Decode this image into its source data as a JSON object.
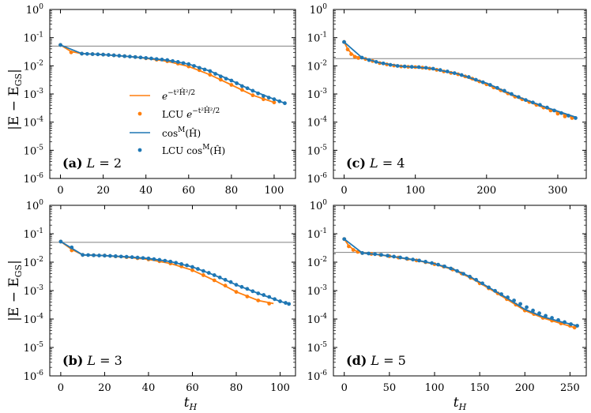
{
  "figure": {
    "ylabel": "|E − E",
    "ylabel_sub": "GS",
    "ylabel_close": "|",
    "xlabel": "t",
    "xlabel_sub": "H"
  },
  "colors": {
    "orange": "#ff7f0e",
    "blue": "#1f77b4",
    "reference": "#808080"
  },
  "legend": {
    "items": [
      {
        "key": "gauss_line",
        "label": "e^{−t²Ĥ²/2}"
      },
      {
        "key": "gauss_lcu",
        "label": "LCU e^{−t²Ĥ²/2}"
      },
      {
        "key": "cos_line",
        "label": "cos^M(Ĥ)"
      },
      {
        "key": "cos_lcu",
        "label": "LCU cos^M(Ĥ)"
      }
    ]
  },
  "y_ticks": {
    "base": "10",
    "exponents": [
      "0",
      "-1",
      "-2",
      "-3",
      "-4",
      "-5",
      "-6"
    ]
  },
  "chart_data": [
    {
      "type": "line",
      "label": "(a)",
      "title": "L = 2",
      "L": "2",
      "xlim": [
        -5,
        110
      ],
      "xticks": [
        0,
        20,
        40,
        60,
        80,
        100
      ],
      "ylim_log10": [
        -6,
        0
      ],
      "reference_y": 0.05,
      "series": [
        {
          "name": "gaussian",
          "style": "orange-line",
          "x": [
            0,
            5,
            10,
            20,
            30,
            40,
            50,
            60,
            70,
            80,
            90,
            100
          ],
          "y": [
            0.055,
            0.032,
            0.027,
            0.025,
            0.022,
            0.0185,
            0.0145,
            0.0095,
            0.0048,
            0.0021,
            0.0009,
            0.0005
          ]
        },
        {
          "name": "LCU gaussian",
          "style": "orange-dots",
          "x": [
            0,
            5,
            10,
            15,
            20,
            25,
            30,
            35,
            40,
            45,
            50,
            55,
            60,
            65,
            70,
            75,
            80,
            85,
            90,
            95,
            100
          ],
          "y": [
            0.055,
            0.03,
            0.027,
            0.026,
            0.025,
            0.0235,
            0.022,
            0.0205,
            0.0185,
            0.0165,
            0.0145,
            0.012,
            0.0095,
            0.007,
            0.0048,
            0.0032,
            0.0021,
            0.0014,
            0.0009,
            0.00065,
            0.0005
          ]
        },
        {
          "name": "cos^M",
          "style": "blue-line",
          "x": [
            0,
            10,
            20,
            30,
            40,
            50,
            60,
            70,
            80,
            90,
            100,
            105
          ],
          "y": [
            0.055,
            0.027,
            0.025,
            0.022,
            0.019,
            0.016,
            0.0115,
            0.0065,
            0.003,
            0.0013,
            0.00065,
            0.00047
          ]
        },
        {
          "name": "LCU cos^M",
          "style": "blue-dots",
          "x": [
            0,
            10,
            12.5,
            15,
            17.5,
            20,
            22.5,
            25,
            27.5,
            30,
            32.5,
            35,
            37.5,
            40,
            42.5,
            45,
            47.5,
            50,
            52.5,
            55,
            57.5,
            60,
            62.5,
            65,
            67.5,
            70,
            72.5,
            75,
            77.5,
            80,
            82.5,
            85,
            87.5,
            90,
            92.5,
            95,
            97.5,
            100,
            102.5,
            105
          ],
          "y": [
            0.055,
            0.027,
            0.0265,
            0.026,
            0.0255,
            0.025,
            0.0243,
            0.0236,
            0.0228,
            0.022,
            0.0213,
            0.0205,
            0.0198,
            0.019,
            0.0182,
            0.0174,
            0.0167,
            0.016,
            0.0148,
            0.0137,
            0.0125,
            0.0115,
            0.0099,
            0.0085,
            0.0074,
            0.0065,
            0.0052,
            0.0042,
            0.0035,
            0.003,
            0.0024,
            0.0019,
            0.0016,
            0.0013,
            0.00105,
            0.00085,
            0.00074,
            0.00065,
            0.00055,
            0.00047
          ]
        }
      ]
    },
    {
      "type": "line",
      "label": "(c)",
      "title": "L = 4",
      "L": "4",
      "xlim": [
        -15,
        340
      ],
      "xticks": [
        0,
        100,
        200,
        300
      ],
      "ylim_log10": [
        -6,
        0
      ],
      "reference_y": 0.018,
      "series": [
        {
          "name": "gaussian",
          "style": "orange-line",
          "x": [
            0,
            5,
            10,
            15,
            20,
            30,
            50,
            80,
            120,
            160,
            200,
            240,
            280,
            320
          ],
          "y": [
            0.07,
            0.04,
            0.028,
            0.022,
            0.02,
            0.0175,
            0.0125,
            0.0095,
            0.008,
            0.005,
            0.0022,
            0.0008,
            0.00033,
            0.00015
          ]
        },
        {
          "name": "LCU gaussian",
          "style": "orange-dots",
          "x": [
            0,
            5,
            10,
            15,
            20,
            30,
            40,
            50,
            60,
            70,
            80,
            90,
            100,
            110,
            120,
            130,
            140,
            150,
            160,
            170,
            180,
            190,
            200,
            210,
            220,
            230,
            240,
            250,
            260,
            270,
            280,
            290,
            300,
            310,
            320
          ],
          "y": [
            0.07,
            0.038,
            0.026,
            0.021,
            0.019,
            0.0175,
            0.0148,
            0.0125,
            0.0112,
            0.0102,
            0.0095,
            0.0092,
            0.009,
            0.0086,
            0.008,
            0.0072,
            0.0063,
            0.0056,
            0.005,
            0.0042,
            0.0035,
            0.0028,
            0.0022,
            0.0017,
            0.00135,
            0.00105,
            0.0008,
            0.00065,
            0.00052,
            0.00041,
            0.00033,
            0.00026,
            0.0002,
            0.00016,
            0.00014
          ]
        },
        {
          "name": "cos^M",
          "style": "blue-line",
          "x": [
            0,
            25,
            50,
            80,
            120,
            160,
            200,
            240,
            280,
            325
          ],
          "y": [
            0.07,
            0.0195,
            0.0128,
            0.0097,
            0.0082,
            0.0052,
            0.0024,
            0.00087,
            0.00036,
            0.00015
          ]
        },
        {
          "name": "LCU cos^M",
          "style": "blue-dots",
          "x": [
            0,
            25,
            35,
            45,
            55,
            65,
            75,
            85,
            95,
            105,
            115,
            125,
            135,
            145,
            155,
            165,
            175,
            185,
            195,
            205,
            215,
            225,
            235,
            245,
            255,
            265,
            275,
            285,
            295,
            305,
            315,
            325
          ],
          "y": [
            0.07,
            0.0195,
            0.016,
            0.0138,
            0.0122,
            0.0108,
            0.0099,
            0.0095,
            0.0092,
            0.009,
            0.0085,
            0.0079,
            0.0071,
            0.0063,
            0.0055,
            0.0047,
            0.004,
            0.0032,
            0.0026,
            0.0021,
            0.00165,
            0.0013,
            0.001,
            0.00078,
            0.00061,
            0.0005,
            0.00041,
            0.00033,
            0.00026,
            0.00021,
            0.00017,
            0.00014
          ]
        }
      ]
    },
    {
      "type": "line",
      "label": "(b)",
      "title": "L = 3",
      "L": "3",
      "xlim": [
        -5,
        107
      ],
      "xticks": [
        0,
        20,
        40,
        60,
        80,
        100
      ],
      "ylim_log10": [
        -6,
        0
      ],
      "reference_y": 0.05,
      "series": [
        {
          "name": "gaussian",
          "style": "orange-line",
          "x": [
            0,
            5,
            10,
            20,
            30,
            40,
            50,
            60,
            70,
            80,
            90,
            97
          ],
          "y": [
            0.053,
            0.028,
            0.018,
            0.017,
            0.015,
            0.0125,
            0.009,
            0.0052,
            0.0023,
            0.0009,
            0.00045,
            0.00035
          ]
        },
        {
          "name": "LCU gaussian",
          "style": "orange-dots",
          "x": [
            0,
            5,
            10,
            15,
            20,
            25,
            30,
            35,
            40,
            45,
            50,
            55,
            60,
            65,
            70,
            75,
            80,
            85,
            90,
            95
          ],
          "y": [
            0.053,
            0.026,
            0.018,
            0.0175,
            0.017,
            0.016,
            0.015,
            0.0138,
            0.0125,
            0.0108,
            0.009,
            0.0071,
            0.0052,
            0.0035,
            0.0023,
            0.0015,
            0.0009,
            0.00062,
            0.00045,
            0.00035
          ]
        },
        {
          "name": "cos^M",
          "style": "blue-line",
          "x": [
            0,
            10,
            20,
            30,
            40,
            50,
            60,
            70,
            80,
            90,
            100,
            104
          ],
          "y": [
            0.053,
            0.018,
            0.017,
            0.0155,
            0.0135,
            0.0105,
            0.0068,
            0.0035,
            0.0016,
            0.0008,
            0.00042,
            0.00034
          ]
        },
        {
          "name": "LCU cos^M",
          "style": "blue-dots",
          "x": [
            0,
            5,
            10,
            12.5,
            15,
            17.5,
            20,
            22.5,
            25,
            27.5,
            30,
            32.5,
            35,
            37.5,
            40,
            42.5,
            45,
            47.5,
            50,
            52.5,
            55,
            57.5,
            60,
            62.5,
            65,
            67.5,
            70,
            72.5,
            75,
            77.5,
            80,
            82.5,
            85,
            87.5,
            90,
            92.5,
            95,
            97.5,
            100,
            102.5,
            104
          ],
          "y": [
            0.053,
            0.033,
            0.018,
            0.0178,
            0.0175,
            0.0172,
            0.017,
            0.0166,
            0.0162,
            0.0158,
            0.0155,
            0.015,
            0.0145,
            0.014,
            0.0135,
            0.0128,
            0.0121,
            0.0113,
            0.0105,
            0.0095,
            0.0086,
            0.0077,
            0.0068,
            0.0058,
            0.0049,
            0.0042,
            0.0035,
            0.0029,
            0.0024,
            0.002,
            0.0016,
            0.00135,
            0.00115,
            0.00095,
            0.0008,
            0.0007,
            0.0006,
            0.0005,
            0.00042,
            0.00037,
            0.00034
          ]
        }
      ]
    },
    {
      "type": "line",
      "label": "(d)",
      "title": "L = 5",
      "L": "5",
      "xlim": [
        -12,
        268
      ],
      "xticks": [
        0,
        50,
        100,
        150,
        200,
        250
      ],
      "ylim_log10": [
        -6,
        0
      ],
      "reference_y": 0.022,
      "series": [
        {
          "name": "gaussian",
          "style": "orange-line",
          "x": [
            0,
            5,
            10,
            15,
            20,
            40,
            60,
            80,
            100,
            120,
            140,
            160,
            180,
            200,
            220,
            240,
            255
          ],
          "y": [
            0.065,
            0.038,
            0.028,
            0.023,
            0.021,
            0.018,
            0.0145,
            0.0115,
            0.0085,
            0.0055,
            0.0028,
            0.0012,
            0.0005,
            0.0002,
            0.00011,
            7e-05,
            5e-05
          ]
        },
        {
          "name": "LCU gaussian",
          "style": "orange-dots",
          "x": [
            0,
            5,
            10,
            15,
            20,
            30,
            40,
            50,
            60,
            70,
            80,
            90,
            100,
            110,
            120,
            130,
            140,
            150,
            160,
            170,
            180,
            190,
            200,
            210,
            220,
            230,
            240,
            250,
            255
          ],
          "y": [
            0.065,
            0.036,
            0.027,
            0.023,
            0.021,
            0.0195,
            0.018,
            0.0162,
            0.0145,
            0.013,
            0.0115,
            0.01,
            0.0085,
            0.007,
            0.0055,
            0.004,
            0.0028,
            0.0018,
            0.0012,
            0.0008,
            0.0005,
            0.00032,
            0.0002,
            0.00015,
            0.00011,
            8.8e-05,
            7e-05,
            5.8e-05,
            5e-05
          ]
        },
        {
          "name": "cos^M",
          "style": "blue-line",
          "x": [
            0,
            20,
            40,
            60,
            80,
            100,
            120,
            140,
            160,
            180,
            200,
            220,
            240,
            258
          ],
          "y": [
            0.065,
            0.021,
            0.0182,
            0.0148,
            0.0118,
            0.0088,
            0.0058,
            0.003,
            0.0013,
            0.00055,
            0.00022,
            0.00012,
            8e-05,
            5.8e-05
          ]
        },
        {
          "name": "LCU cos^M",
          "style": "blue-dots",
          "x": [
            0,
            20,
            27,
            34,
            41,
            48,
            55,
            62,
            69,
            76,
            83,
            90,
            97,
            104,
            111,
            118,
            125,
            132,
            139,
            146,
            153,
            160,
            167,
            174,
            181,
            188,
            195,
            202,
            209,
            216,
            223,
            230,
            237,
            244,
            251,
            258
          ],
          "y": [
            0.065,
            0.021,
            0.0202,
            0.0192,
            0.0181,
            0.0169,
            0.0157,
            0.0146,
            0.0135,
            0.0124,
            0.0114,
            0.0104,
            0.0093,
            0.0082,
            0.0071,
            0.006,
            0.0049,
            0.0039,
            0.0031,
            0.0024,
            0.0018,
            0.0013,
            0.00098,
            0.00075,
            0.00058,
            0.00045,
            0.00034,
            0.00026,
            0.0002,
            0.00016,
            0.00013,
            0.00011,
            9.2e-05,
            7.8e-05,
            6.6e-05,
            5.8e-05
          ]
        }
      ]
    }
  ]
}
